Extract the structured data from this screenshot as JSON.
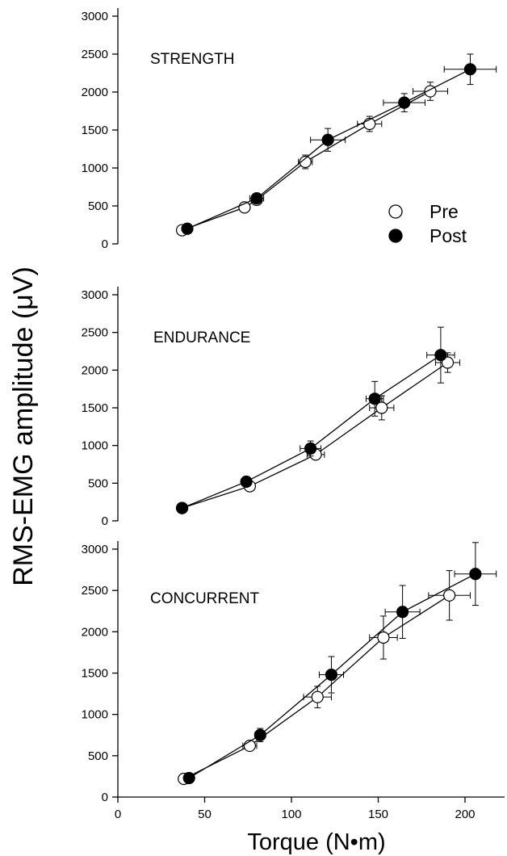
{
  "ylabel": "RMS-EMG amplitude (μV)",
  "xlabel": "Torque (N•m)",
  "legend": {
    "placement": "right (top panel)",
    "pre": "Pre",
    "post": "Post"
  },
  "xticks": [
    "0",
    "50",
    "100",
    "150",
    "200"
  ],
  "yticks": [
    "0",
    "500",
    "1000",
    "1500",
    "2000",
    "2500",
    "3000"
  ],
  "colors": {
    "pre_fill": "#ffffff",
    "post_fill": "#000000",
    "stroke": "#000000"
  },
  "chart_data": [
    {
      "type": "scatter",
      "title": "STRENGTH",
      "xlim": [
        0,
        220
      ],
      "ylim": [
        0,
        3000
      ],
      "series": [
        {
          "name": "Pre",
          "marker": "open-circle",
          "x": [
            37,
            73,
            80,
            108,
            145,
            180
          ],
          "y": [
            180,
            480,
            580,
            1080,
            1580,
            2010
          ],
          "xerr": [
            0,
            0,
            0,
            4,
            7,
            10
          ],
          "yerr": [
            0,
            0,
            0,
            90,
            100,
            120
          ]
        },
        {
          "name": "Post",
          "marker": "filled-circle",
          "x": [
            40,
            80,
            121,
            165,
            203
          ],
          "y": [
            200,
            600,
            1370,
            1860,
            2300
          ],
          "xerr": [
            0,
            4,
            10,
            12,
            15
          ],
          "yerr": [
            0,
            0,
            150,
            120,
            200
          ]
        }
      ]
    },
    {
      "type": "scatter",
      "title": "ENDURANCE",
      "xlim": [
        0,
        220
      ],
      "ylim": [
        0,
        3000
      ],
      "series": [
        {
          "name": "Pre",
          "marker": "open-circle",
          "x": [
            37,
            76,
            114,
            152,
            190
          ],
          "y": [
            170,
            460,
            880,
            1500,
            2100
          ],
          "xerr": [
            0,
            0,
            5,
            7,
            7
          ],
          "yerr": [
            0,
            0,
            60,
            160,
            130
          ]
        },
        {
          "name": "Post",
          "marker": "filled-circle",
          "x": [
            37,
            74,
            111,
            148,
            186
          ],
          "y": [
            170,
            520,
            960,
            1620,
            2200
          ],
          "xerr": [
            0,
            0,
            6,
            5,
            8
          ],
          "yerr": [
            0,
            0,
            100,
            230,
            370
          ]
        }
      ]
    },
    {
      "type": "scatter",
      "title": "CONCURRENT",
      "xlim": [
        0,
        220
      ],
      "ylim": [
        0,
        3000
      ],
      "series": [
        {
          "name": "Pre",
          "marker": "open-circle",
          "x": [
            38,
            76,
            115,
            153,
            191
          ],
          "y": [
            220,
            620,
            1210,
            1930,
            2440
          ],
          "xerr": [
            0,
            4,
            8,
            8,
            12
          ],
          "yerr": [
            0,
            0,
            130,
            260,
            300
          ]
        },
        {
          "name": "Post",
          "marker": "filled-circle",
          "x": [
            41,
            82,
            123,
            164,
            206
          ],
          "y": [
            230,
            750,
            1480,
            2240,
            2700
          ],
          "xerr": [
            0,
            3,
            7,
            10,
            12
          ],
          "yerr": [
            0,
            80,
            220,
            320,
            380
          ]
        }
      ]
    }
  ]
}
